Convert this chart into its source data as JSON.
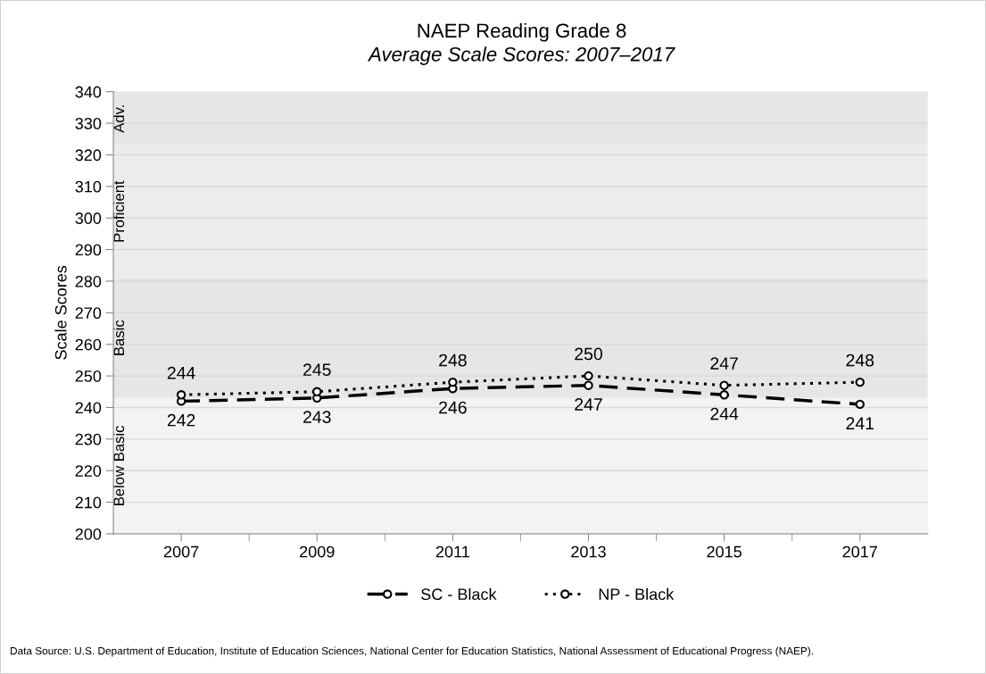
{
  "chart_data": {
    "type": "line",
    "title": "NAEP Reading Grade 8",
    "subtitle": "Average Scale Scores: 2007–2017",
    "ylabel": "Scale Scores",
    "categories": [
      "2007",
      "2009",
      "2011",
      "2013",
      "2015",
      "2017"
    ],
    "series": [
      {
        "name": "SC - Black",
        "color": "#000000",
        "values": [
          242,
          243,
          246,
          247,
          244,
          241
        ],
        "line_style": "dashed"
      },
      {
        "name": "NP - Black",
        "color": "#000000",
        "values": [
          244,
          245,
          248,
          250,
          247,
          248
        ],
        "line_style": "dotted"
      }
    ],
    "ylim": [
      200,
      340
    ],
    "yticks": [
      200,
      210,
      220,
      230,
      240,
      250,
      260,
      270,
      280,
      290,
      300,
      310,
      320,
      330,
      340
    ],
    "bands": [
      {
        "axis": "y",
        "from": 200,
        "to": 243,
        "label": "Below Basic",
        "color": "#f3f3f3"
      },
      {
        "axis": "y",
        "from": 243,
        "to": 281,
        "label": "Basic",
        "color": "#e6e6e6"
      },
      {
        "axis": "y",
        "from": 281,
        "to": 323,
        "label": "Proficient",
        "color": "#ececec"
      },
      {
        "axis": "y",
        "from": 323,
        "to": 340,
        "label": "Adv.",
        "color": "#e6e6e6"
      }
    ],
    "grid": "y",
    "marker": "circle",
    "data_labels": true,
    "legend": "bottom",
    "annotations": [
      "Data Source: U.S. Department of Education, Institute of Education Sciences, National Center for Education Statistics, National Assessment of Educational Progress (NAEP)."
    ]
  }
}
